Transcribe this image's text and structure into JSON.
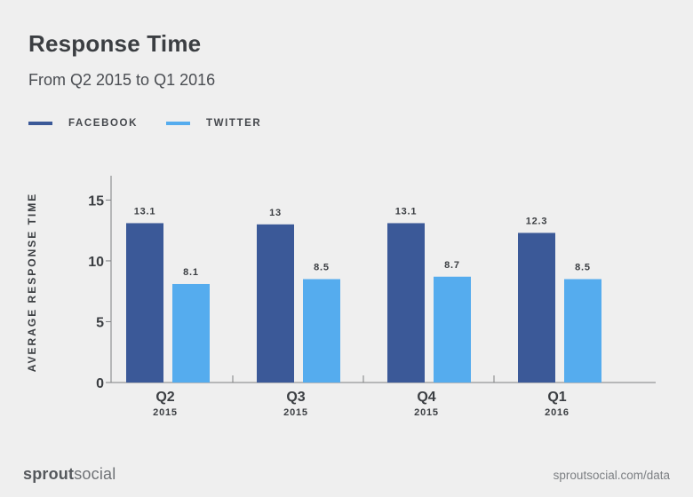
{
  "colors": {
    "facebook": "#3b5998",
    "twitter": "#55acee",
    "axis": "#7d7f82",
    "text": "#3b3e42"
  },
  "footer": {
    "brand_bold": "sprout",
    "brand_light": "social",
    "url": "sproutsocial.com/data"
  },
  "chart_data": {
    "type": "bar",
    "title": "Response Time",
    "subtitle": "From Q2 2015 to Q1 2016",
    "ylabel": "AVERAGE RESPONSE TIME",
    "xlabel": "",
    "ylim": [
      0,
      17
    ],
    "yticks": [
      0,
      5,
      10,
      15
    ],
    "grid": false,
    "legend_position": "top-left",
    "categories": [
      "Q2",
      "Q3",
      "Q4",
      "Q1"
    ],
    "category_years": [
      "2015",
      "2015",
      "2015",
      "2016"
    ],
    "series": [
      {
        "name": "FACEBOOK",
        "values": [
          13.1,
          13,
          13.1,
          12.3
        ],
        "labels": [
          "13.1",
          "13",
          "13.1",
          "12.3"
        ]
      },
      {
        "name": "TWITTER",
        "values": [
          8.1,
          8.5,
          8.7,
          8.5
        ],
        "labels": [
          "8.1",
          "8.5",
          "8.7",
          "8.5"
        ]
      }
    ]
  }
}
